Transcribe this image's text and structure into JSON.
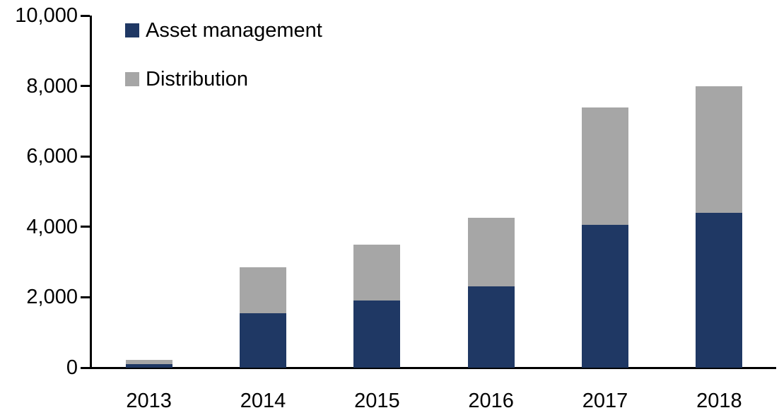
{
  "chart_data": {
    "type": "bar",
    "subtype": "stacked-column",
    "title": "",
    "xlabel": "",
    "ylabel": "",
    "categories": [
      "2013",
      "2014",
      "2015",
      "2016",
      "2017",
      "2018"
    ],
    "series": [
      {
        "name": "Asset management",
        "color": "#1F3864",
        "values": [
          100,
          1550,
          1900,
          2300,
          4050,
          4400
        ]
      },
      {
        "name": "Distribution",
        "color": "#A6A6A6",
        "values": [
          120,
          1300,
          1600,
          1950,
          3330,
          3600
        ]
      }
    ],
    "stacked_totals": [
      220,
      2850,
      3500,
      4250,
      7380,
      8000
    ],
    "ylim": [
      0,
      10000
    ],
    "y_tick_values": [
      0,
      2000,
      4000,
      6000,
      8000,
      10000
    ],
    "y_tick_labels": [
      "0",
      "2,000",
      "4,000",
      "6,000",
      "8,000",
      "10,000"
    ],
    "grid": false,
    "legend_position": "top-left",
    "axis_color": "#000000",
    "text_color": "#000000",
    "background_color": "#FFFFFF"
  }
}
